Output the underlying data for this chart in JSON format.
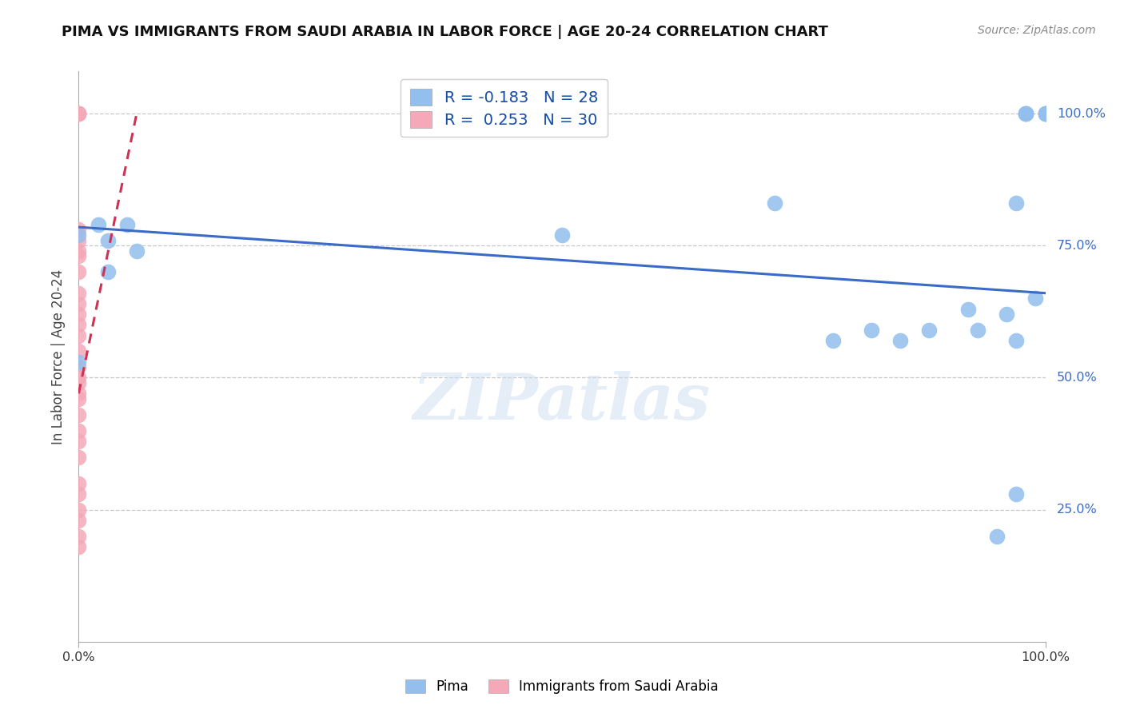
{
  "title": "PIMA VS IMMIGRANTS FROM SAUDI ARABIA IN LABOR FORCE | AGE 20-24 CORRELATION CHART",
  "source": "Source: ZipAtlas.com",
  "ylabel": "In Labor Force | Age 20-24",
  "xlim": [
    0.0,
    1.0
  ],
  "ylim": [
    0.0,
    1.08
  ],
  "legend_blue_r": "-0.183",
  "legend_blue_n": "28",
  "legend_pink_r": "0.253",
  "legend_pink_n": "30",
  "legend_blue_label": "Pima",
  "legend_pink_label": "Immigrants from Saudi Arabia",
  "blue_color": "#92bfed",
  "pink_color": "#f4a8b8",
  "blue_line_color": "#3a6bc8",
  "pink_line_color": "#cc3355",
  "watermark_text": "ZIPatlas",
  "blue_points_x": [
    0.0,
    0.0,
    0.02,
    0.03,
    0.03,
    0.05,
    0.06,
    0.5,
    0.72,
    0.78,
    0.82,
    0.85,
    0.88,
    0.92,
    0.93,
    0.95,
    0.96,
    0.97,
    0.97,
    0.97,
    0.98,
    0.98,
    0.98,
    0.99,
    1.0,
    1.0,
    1.0,
    1.0
  ],
  "blue_points_y": [
    0.53,
    0.77,
    0.79,
    0.76,
    0.7,
    0.79,
    0.74,
    0.77,
    0.83,
    0.57,
    0.59,
    0.57,
    0.59,
    0.63,
    0.59,
    0.2,
    0.62,
    0.28,
    0.57,
    0.83,
    1.0,
    1.0,
    1.0,
    0.65,
    1.0,
    1.0,
    1.0,
    1.0
  ],
  "pink_points_x": [
    0.0,
    0.0,
    0.0,
    0.0,
    0.0,
    0.0,
    0.0,
    0.0,
    0.0,
    0.0,
    0.0,
    0.0,
    0.0,
    0.0,
    0.0,
    0.0,
    0.0,
    0.0,
    0.0,
    0.0,
    0.0,
    0.0,
    0.0,
    0.0,
    0.0,
    0.0,
    0.0,
    0.0,
    0.0,
    0.0
  ],
  "pink_points_y": [
    1.0,
    1.0,
    1.0,
    1.0,
    0.78,
    0.76,
    0.74,
    0.73,
    0.7,
    0.66,
    0.64,
    0.62,
    0.6,
    0.58,
    0.55,
    0.52,
    0.5,
    0.49,
    0.47,
    0.46,
    0.43,
    0.4,
    0.38,
    0.35,
    0.3,
    0.28,
    0.25,
    0.23,
    0.2,
    0.18
  ],
  "blue_trend_x0": 0.0,
  "blue_trend_x1": 1.0,
  "blue_trend_y0": 0.785,
  "blue_trend_y1": 0.66,
  "pink_trend_x0": 0.0,
  "pink_trend_x1": 0.06,
  "pink_trend_y0": 0.47,
  "pink_trend_y1": 1.0,
  "right_ytick_labels": [
    "100.0%",
    "75.0%",
    "50.0%",
    "25.0%"
  ],
  "right_ytick_values": [
    1.0,
    0.75,
    0.5,
    0.25
  ]
}
